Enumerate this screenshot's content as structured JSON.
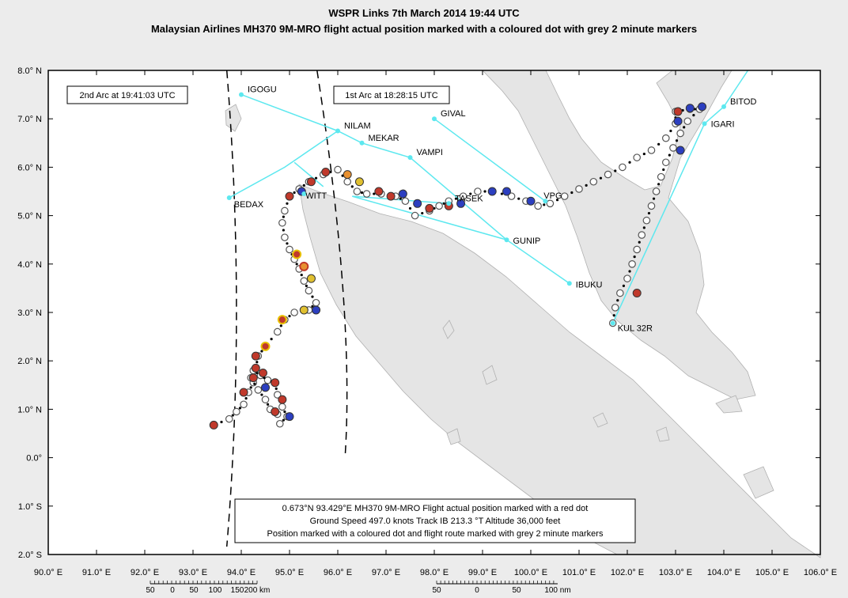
{
  "title_line1": "WSPR Links 7th March 2014 19:44 UTC",
  "title_line2": "Malaysian Airlines MH370 9M-MRO flight actual position marked with a coloured dot with grey 2 minute markers",
  "axes": {
    "lon_labels": [
      "90.0° E",
      "91.0° E",
      "92.0° E",
      "93.0° E",
      "94.0° E",
      "95.0° E",
      "96.0° E",
      "97.0° E",
      "98.0° E",
      "99.0° E",
      "100.0° E",
      "101.0° E",
      "102.0° E",
      "103.0° E",
      "104.0° E",
      "105.0° E",
      "106.0° E"
    ],
    "lon_values": [
      90,
      91,
      92,
      93,
      94,
      95,
      96,
      97,
      98,
      99,
      100,
      101,
      102,
      103,
      104,
      105,
      106
    ],
    "lat_labels": [
      "8.0° N",
      "7.0° N",
      "6.0° N",
      "5.0° N",
      "4.0° N",
      "3.0° N",
      "2.0° N",
      "1.0° N",
      "0.0°",
      "1.0° S",
      "2.0° S"
    ],
    "lat_values": [
      8,
      7,
      6,
      5,
      4,
      3,
      2,
      1,
      0,
      -1,
      -2
    ],
    "xlim": [
      90,
      106
    ],
    "ylim": [
      -2,
      8
    ]
  },
  "arcs": {
    "arc2_label": "2nd Arc at 19:41:03 UTC",
    "arc1_label": "1st Arc at 18:28:15 UTC"
  },
  "waypoints": [
    {
      "name": "IGOGU",
      "lon": 94.0,
      "lat": 7.5
    },
    {
      "name": "NILAM",
      "lon": 96.0,
      "lat": 6.75
    },
    {
      "name": "MEKAR",
      "lon": 96.5,
      "lat": 6.5
    },
    {
      "name": "VAMPI",
      "lon": 97.5,
      "lat": 6.2
    },
    {
      "name": "GIVAL",
      "lon": 98.0,
      "lat": 7.0
    },
    {
      "name": "BEDAX",
      "lon": 93.75,
      "lat": 5.37
    },
    {
      "name": "WITT",
      "lon": 95.3,
      "lat": 5.45
    },
    {
      "name": "TASEK",
      "lon": 98.3,
      "lat": 5.25
    },
    {
      "name": "VPG",
      "lon": 100.3,
      "lat": 5.3
    },
    {
      "name": "GUNIP",
      "lon": 99.5,
      "lat": 4.5
    },
    {
      "name": "IBUKU",
      "lon": 100.8,
      "lat": 3.6
    },
    {
      "name": "BITOD",
      "lon": 104.0,
      "lat": 7.25
    },
    {
      "name": "IGARI",
      "lon": 103.6,
      "lat": 6.9
    },
    {
      "name": "KUL 32R",
      "lon": 101.7,
      "lat": 2.78
    }
  ],
  "route_links": [
    [
      [
        94.0,
        7.5
      ],
      [
        96.0,
        6.75
      ],
      [
        96.5,
        6.5
      ],
      [
        97.5,
        6.2
      ],
      [
        99.5,
        4.5
      ],
      [
        100.8,
        3.6
      ]
    ],
    [
      [
        98.0,
        7.0
      ],
      [
        100.3,
        5.3
      ]
    ],
    [
      [
        93.75,
        5.37
      ],
      [
        94.9,
        6.0
      ],
      [
        96.0,
        6.75
      ]
    ],
    [
      [
        95.1,
        6.1
      ],
      [
        95.7,
        5.6
      ]
    ],
    [
      [
        96.3,
        5.4
      ],
      [
        98.3,
        5.25
      ]
    ],
    [
      [
        96.3,
        5.4
      ],
      [
        99.5,
        4.5
      ]
    ],
    [
      [
        101.7,
        2.78
      ],
      [
        103.6,
        6.9
      ]
    ],
    [
      [
        103.6,
        6.9
      ],
      [
        104.0,
        7.25
      ]
    ],
    [
      [
        104.0,
        7.25
      ],
      [
        104.5,
        8.0
      ]
    ]
  ],
  "flight_path": [
    [
      101.7,
      2.78
    ],
    [
      101.75,
      3.1
    ],
    [
      101.85,
      3.4
    ],
    [
      102.0,
      3.7
    ],
    [
      102.1,
      4.0
    ],
    [
      102.2,
      4.3
    ],
    [
      102.3,
      4.6
    ],
    [
      102.4,
      4.9
    ],
    [
      102.5,
      5.2
    ],
    [
      102.6,
      5.5
    ],
    [
      102.7,
      5.8
    ],
    [
      102.8,
      6.1
    ],
    [
      102.95,
      6.4
    ],
    [
      103.1,
      6.7
    ],
    [
      103.25,
      6.95
    ],
    [
      103.5,
      7.2
    ],
    [
      103.3,
      7.2
    ],
    [
      103.0,
      7.15
    ],
    [
      103.0,
      6.9
    ],
    [
      102.8,
      6.6
    ],
    [
      102.5,
      6.35
    ],
    [
      102.2,
      6.2
    ],
    [
      101.9,
      6.0
    ],
    [
      101.6,
      5.85
    ],
    [
      101.3,
      5.7
    ],
    [
      101.0,
      5.55
    ],
    [
      100.7,
      5.4
    ],
    [
      100.4,
      5.25
    ],
    [
      100.15,
      5.2
    ],
    [
      99.9,
      5.3
    ],
    [
      99.6,
      5.4
    ],
    [
      99.2,
      5.5
    ],
    [
      98.9,
      5.5
    ],
    [
      98.6,
      5.4
    ],
    [
      98.3,
      5.3
    ],
    [
      98.1,
      5.2
    ],
    [
      97.9,
      5.1
    ],
    [
      97.6,
      5.0
    ],
    [
      97.4,
      5.3
    ],
    [
      97.2,
      5.4
    ],
    [
      96.9,
      5.45
    ],
    [
      96.6,
      5.45
    ],
    [
      96.4,
      5.5
    ],
    [
      96.2,
      5.7
    ],
    [
      96.0,
      5.95
    ],
    [
      95.7,
      5.85
    ],
    [
      95.4,
      5.7
    ],
    [
      95.2,
      5.55
    ],
    [
      95.0,
      5.4
    ],
    [
      94.9,
      5.1
    ],
    [
      94.85,
      4.85
    ],
    [
      94.9,
      4.55
    ],
    [
      95.0,
      4.3
    ],
    [
      95.1,
      4.1
    ],
    [
      95.2,
      3.9
    ],
    [
      95.3,
      3.65
    ],
    [
      95.4,
      3.45
    ],
    [
      95.55,
      3.2
    ],
    [
      95.4,
      3.05
    ],
    [
      95.1,
      3.0
    ],
    [
      94.9,
      2.85
    ],
    [
      94.75,
      2.6
    ],
    [
      94.5,
      2.3
    ],
    [
      94.35,
      2.1
    ],
    [
      94.3,
      1.85
    ],
    [
      94.25,
      1.55
    ],
    [
      94.15,
      1.35
    ],
    [
      94.05,
      1.1
    ],
    [
      93.9,
      0.95
    ],
    [
      93.75,
      0.8
    ],
    [
      93.43,
      0.673
    ],
    [
      94.25,
      1.8
    ],
    [
      94.4,
      1.7
    ],
    [
      94.55,
      1.6
    ],
    [
      94.7,
      1.55
    ],
    [
      94.75,
      1.3
    ],
    [
      94.85,
      1.05
    ],
    [
      94.95,
      0.85
    ],
    [
      94.8,
      0.7
    ],
    [
      94.2,
      1.65
    ],
    [
      94.35,
      1.4
    ],
    [
      94.5,
      1.2
    ],
    [
      94.6,
      1.0
    ],
    [
      94.75,
      0.9
    ]
  ],
  "coloured_dots": [
    {
      "lon": 103.05,
      "lat": 7.15,
      "color": "#c0392b"
    },
    {
      "lon": 103.3,
      "lat": 7.22,
      "color": "#2c3fc0"
    },
    {
      "lon": 103.55,
      "lat": 7.25,
      "color": "#2c3fc0"
    },
    {
      "lon": 103.05,
      "lat": 6.95,
      "color": "#2c3fc0"
    },
    {
      "lon": 103.1,
      "lat": 6.35,
      "color": "#2c3fc0"
    },
    {
      "lon": 102.2,
      "lat": 3.4,
      "color": "#c0392b"
    },
    {
      "lon": 99.2,
      "lat": 5.5,
      "color": "#2c3fc0"
    },
    {
      "lon": 99.5,
      "lat": 5.5,
      "color": "#2c3fc0"
    },
    {
      "lon": 100.0,
      "lat": 5.3,
      "color": "#2c3fc0"
    },
    {
      "lon": 98.55,
      "lat": 5.25,
      "color": "#2c3fc0"
    },
    {
      "lon": 98.3,
      "lat": 5.2,
      "color": "#c0392b"
    },
    {
      "lon": 97.9,
      "lat": 5.15,
      "color": "#c0392b"
    },
    {
      "lon": 97.65,
      "lat": 5.25,
      "color": "#2c3fc0"
    },
    {
      "lon": 97.35,
      "lat": 5.45,
      "color": "#2c3fc0"
    },
    {
      "lon": 97.1,
      "lat": 5.4,
      "color": "#c0392b"
    },
    {
      "lon": 96.85,
      "lat": 5.5,
      "color": "#c0392b"
    },
    {
      "lon": 96.45,
      "lat": 5.7,
      "color": "#e0c030"
    },
    {
      "lon": 96.2,
      "lat": 5.85,
      "color": "#e89030"
    },
    {
      "lon": 95.75,
      "lat": 5.9,
      "color": "#c0392b"
    },
    {
      "lon": 95.45,
      "lat": 5.7,
      "color": "#c0392b"
    },
    {
      "lon": 95.25,
      "lat": 5.5,
      "color": "#2c3fc0"
    },
    {
      "lon": 95.0,
      "lat": 5.4,
      "color": "#c0392b"
    },
    {
      "lon": 95.15,
      "lat": 4.2,
      "color": "#c0392b",
      "ring": "#e8c000"
    },
    {
      "lon": 95.3,
      "lat": 3.95,
      "color": "#e89030",
      "ring": "#c0392b"
    },
    {
      "lon": 95.45,
      "lat": 3.7,
      "color": "#e0c030"
    },
    {
      "lon": 95.55,
      "lat": 3.05,
      "color": "#2c3fc0"
    },
    {
      "lon": 95.3,
      "lat": 3.05,
      "color": "#e0c030"
    },
    {
      "lon": 94.85,
      "lat": 2.85,
      "color": "#c0392b",
      "ring": "#e8c000"
    },
    {
      "lon": 94.5,
      "lat": 2.3,
      "color": "#c0392b",
      "ring": "#e8c000"
    },
    {
      "lon": 94.3,
      "lat": 2.1,
      "color": "#c0392b"
    },
    {
      "lon": 94.3,
      "lat": 1.85,
      "color": "#c0392b"
    },
    {
      "lon": 94.45,
      "lat": 1.75,
      "color": "#c0392b"
    },
    {
      "lon": 94.25,
      "lat": 1.65,
      "color": "#c0392b"
    },
    {
      "lon": 94.7,
      "lat": 1.55,
      "color": "#c0392b"
    },
    {
      "lon": 94.5,
      "lat": 1.45,
      "color": "#2c3fc0"
    },
    {
      "lon": 94.05,
      "lat": 1.35,
      "color": "#c0392b"
    },
    {
      "lon": 94.85,
      "lat": 1.2,
      "color": "#c0392b"
    },
    {
      "lon": 94.7,
      "lat": 0.95,
      "color": "#c0392b"
    },
    {
      "lon": 95.0,
      "lat": 0.85,
      "color": "#2c3fc0"
    },
    {
      "lon": 93.43,
      "lat": 0.673,
      "color": "#c0392b"
    }
  ],
  "info_box": {
    "line1": "0.673°N 93.429°E MH370 9M-MRO Flight actual position marked with a red dot",
    "line2": "Ground Speed 497.0 knots Track IB 213.3 °T Altitude 36,000 feet",
    "line3": "Position marked with a coloured dot and flight route marked with grey 2 minute markers"
  },
  "scale_km": {
    "labels": [
      "50",
      "0",
      "50",
      "100",
      "150",
      "200 km"
    ]
  },
  "scale_nm": {
    "labels": [
      "50",
      "0",
      "50",
      "100 nm"
    ]
  },
  "colors": {
    "sea": "#ffffff",
    "land": "#e5e5e5",
    "coast": "#b0b0b0",
    "route": "#5de8ef",
    "path": "#000000"
  }
}
